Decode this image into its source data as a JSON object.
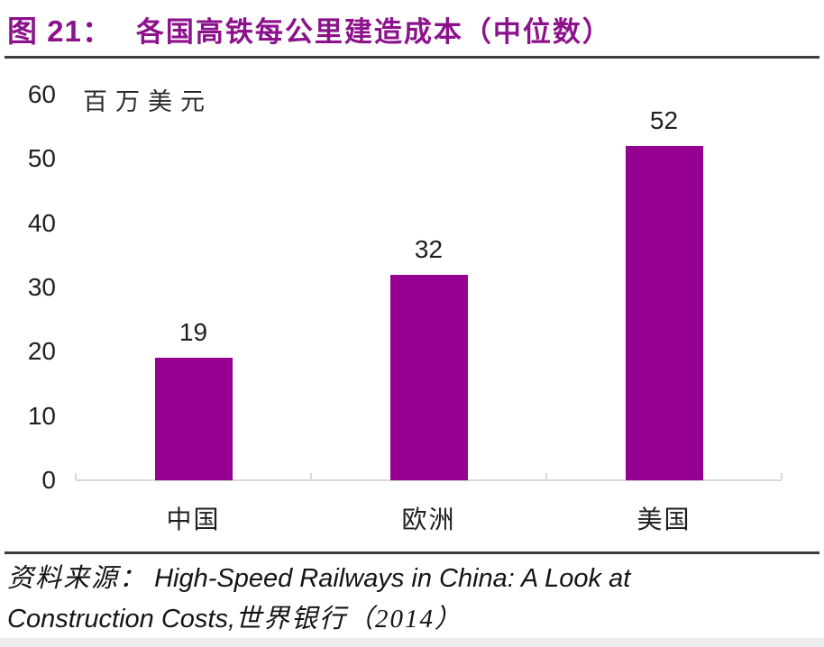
{
  "title": {
    "prefix": "图 21：",
    "text": "各国高铁每公里建造成本（中位数）"
  },
  "colors": {
    "title_purple": "#8C128C",
    "bar_purple": "#960090",
    "rule_dark": "#3c3c3c",
    "axis_gray": "#d9d9d9"
  },
  "chart_data": {
    "type": "bar",
    "title": "各国高铁每公里建造成本（中位数）",
    "categories": [
      "中国",
      "欧洲",
      "美国"
    ],
    "values": [
      19,
      32,
      52
    ],
    "unit_label": "百万美元",
    "ylabel": "百万美元",
    "xlabel": "",
    "y_ticks": [
      60,
      50,
      40,
      30,
      20,
      10,
      0
    ],
    "ylim": [
      0,
      60
    ],
    "grid": false,
    "legend": "none",
    "bar_color": "#960090",
    "data_labels": [
      "19",
      "32",
      "52"
    ]
  },
  "source": {
    "label": "资料来源：",
    "english_part1": "High-Speed Railways in China: A Look at",
    "english_part2": "Construction Costs,",
    "cjk_suffix": "世界银行（2014）"
  }
}
